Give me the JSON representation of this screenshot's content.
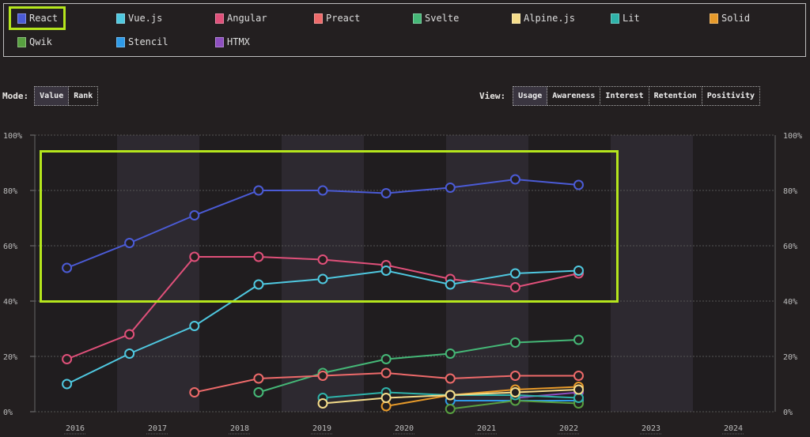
{
  "legend": [
    {
      "name": "React",
      "color": "#4b5bd6"
    },
    {
      "name": "Vue.js",
      "color": "#4fc8e0"
    },
    {
      "name": "Angular",
      "color": "#e0507a"
    },
    {
      "name": "Preact",
      "color": "#ee6a6a"
    },
    {
      "name": "Svelte",
      "color": "#45b877"
    },
    {
      "name": "Alpine.js",
      "color": "#f5dc8a"
    },
    {
      "name": "Lit",
      "color": "#2fb3aa"
    },
    {
      "name": "Solid",
      "color": "#e79a2a"
    },
    {
      "name": "Qwik",
      "color": "#58a040"
    },
    {
      "name": "Stencil",
      "color": "#2f9be8"
    },
    {
      "name": "HTMX",
      "color": "#8e4fc0"
    }
  ],
  "mode": {
    "label": "Mode:",
    "options": [
      "Value",
      "Rank"
    ],
    "selected": "Value"
  },
  "view": {
    "label": "View:",
    "options": [
      "Usage",
      "Awareness",
      "Interest",
      "Retention",
      "Positivity"
    ],
    "selected": "Usage"
  },
  "chart_data": {
    "type": "line",
    "x_ticks": [
      "2016",
      "2017",
      "2018",
      "2019",
      "2020",
      "2021",
      "2022",
      "2023",
      "2024"
    ],
    "y_ticks": [
      "0%",
      "20%",
      "40%",
      "60%",
      "80%",
      "100%"
    ],
    "ylim": [
      0,
      100
    ],
    "xlim": [
      2015.5,
      2024.5
    ],
    "grid": true,
    "x": [
      2015.9,
      2016.66,
      2017.45,
      2018.23,
      2019.01,
      2019.78,
      2020.56,
      2021.35,
      2022.12
    ],
    "series": [
      {
        "name": "React",
        "values": [
          52,
          61,
          71,
          80,
          80,
          79,
          81,
          84,
          82
        ]
      },
      {
        "name": "Vue.js",
        "values": [
          10,
          21,
          31,
          46,
          48,
          51,
          46,
          50,
          51
        ]
      },
      {
        "name": "Angular",
        "values": [
          19,
          28,
          56,
          56,
          55,
          53,
          48,
          45,
          50
        ]
      },
      {
        "name": "Preact",
        "values": [
          null,
          null,
          7,
          12,
          13,
          14,
          12,
          13,
          13
        ]
      },
      {
        "name": "Svelte",
        "values": [
          null,
          null,
          null,
          7,
          14,
          19,
          21,
          25,
          26
        ]
      },
      {
        "name": "Alpine.js",
        "values": [
          null,
          null,
          null,
          null,
          3,
          5,
          6,
          7,
          8
        ]
      },
      {
        "name": "Lit",
        "values": [
          null,
          null,
          null,
          null,
          5,
          7,
          6,
          6,
          5
        ]
      },
      {
        "name": "Solid",
        "values": [
          null,
          null,
          null,
          null,
          null,
          2,
          6,
          8,
          9
        ]
      },
      {
        "name": "Qwik",
        "values": [
          null,
          null,
          null,
          null,
          null,
          null,
          1,
          4,
          3
        ]
      },
      {
        "name": "Stencil",
        "values": [
          null,
          null,
          null,
          null,
          null,
          null,
          4,
          4,
          4
        ]
      },
      {
        "name": "HTMX",
        "values": [
          null,
          null,
          null,
          null,
          null,
          null,
          null,
          5,
          7
        ]
      }
    ]
  }
}
